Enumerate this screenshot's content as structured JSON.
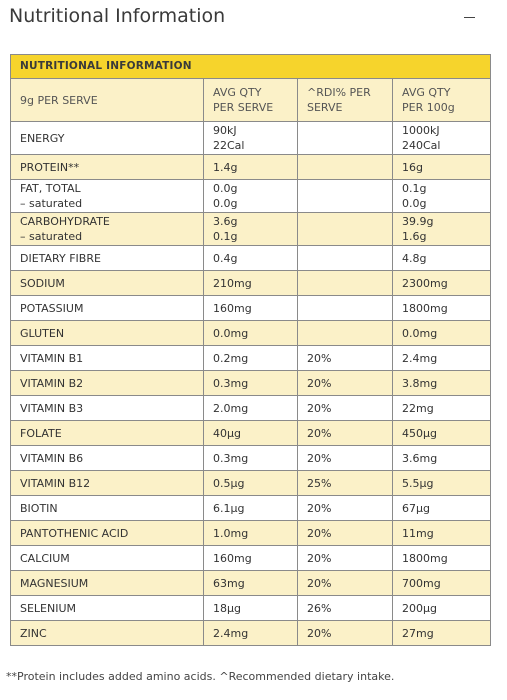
{
  "page": {
    "title": "Nutritional Information"
  },
  "panel": {
    "icon": "minus-icon"
  },
  "table": {
    "banner": "NUTRITIONAL INFORMATION",
    "headers": [
      "9g PER SERVE",
      "AVG QTY\nPER SERVE",
      "^RDI% PER\nSERVE",
      "AVG QTY\nPER 100g"
    ],
    "rows": [
      {
        "name": "ENERGY",
        "serve": "90kJ\n22Cal",
        "rdi": "",
        "per100": "1000kJ\n240Cal"
      },
      {
        "name": "PROTEIN**",
        "serve": "1.4g",
        "rdi": "",
        "per100": "16g"
      },
      {
        "name": "FAT, TOTAL\n– saturated",
        "serve": "0.0g\n0.0g",
        "rdi": "",
        "per100": "0.1g\n0.0g"
      },
      {
        "name": "CARBOHYDRATE\n– saturated",
        "serve": "3.6g\n0.1g",
        "rdi": "",
        "per100": "39.9g\n1.6g"
      },
      {
        "name": "DIETARY FIBRE",
        "serve": "0.4g",
        "rdi": "",
        "per100": "4.8g"
      },
      {
        "name": "SODIUM",
        "serve": "210mg",
        "rdi": "",
        "per100": "2300mg"
      },
      {
        "name": "POTASSIUM",
        "serve": "160mg",
        "rdi": "",
        "per100": "1800mg"
      },
      {
        "name": "GLUTEN",
        "serve": "0.0mg",
        "rdi": "",
        "per100": "0.0mg"
      },
      {
        "name": "VITAMIN B1",
        "serve": "0.2mg",
        "rdi": "20%",
        "per100": "2.4mg"
      },
      {
        "name": "VITAMIN B2",
        "serve": "0.3mg",
        "rdi": "20%",
        "per100": "3.8mg"
      },
      {
        "name": "VITAMIN B3",
        "serve": "2.0mg",
        "rdi": "20%",
        "per100": "22mg"
      },
      {
        "name": "FOLATE",
        "serve": "40µg",
        "rdi": "20%",
        "per100": "450µg"
      },
      {
        "name": "VITAMIN B6",
        "serve": "0.3mg",
        "rdi": "20%",
        "per100": "3.6mg"
      },
      {
        "name": "VITAMIN B12",
        "serve": "0.5µg",
        "rdi": "25%",
        "per100": "5.5µg"
      },
      {
        "name": "BIOTIN",
        "serve": "6.1µg",
        "rdi": "20%",
        "per100": "67µg"
      },
      {
        "name": "PANTOTHENIC ACID",
        "serve": "1.0mg",
        "rdi": "20%",
        "per100": "11mg"
      },
      {
        "name": "CALCIUM",
        "serve": "160mg",
        "rdi": "20%",
        "per100": "1800mg"
      },
      {
        "name": "MAGNESIUM",
        "serve": "63mg",
        "rdi": "20%",
        "per100": "700mg"
      },
      {
        "name": "SELENIUM",
        "serve": "18µg",
        "rdi": "26%",
        "per100": "200µg"
      },
      {
        "name": "ZINC",
        "serve": "2.4mg",
        "rdi": "20%",
        "per100": "27mg"
      }
    ]
  },
  "footnote": "**Protein includes added amino acids. ^Recommended dietary intake.",
  "colors": {
    "banner": "#f6d42c",
    "stripe": "#fbf1c8",
    "border": "#8a8a8a"
  }
}
